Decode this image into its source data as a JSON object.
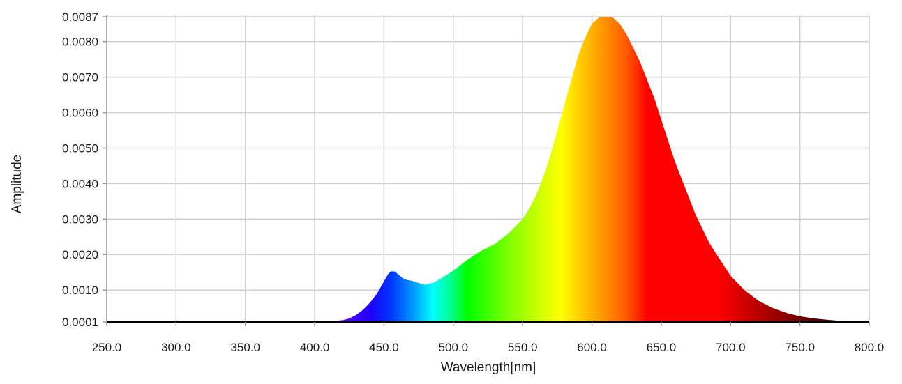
{
  "chart_data": {
    "type": "area",
    "title": "",
    "xlabel": "Wavelength[nm]",
    "ylabel": "Amplitude",
    "xlim": [
      250,
      800
    ],
    "ylim": [
      0.0001,
      0.0087
    ],
    "grid": true,
    "x_ticks": [
      250,
      300,
      350,
      400,
      450,
      500,
      550,
      600,
      650,
      700,
      750,
      800
    ],
    "x_tick_labels": [
      "250.0",
      "300.0",
      "350.0",
      "400.0",
      "450.0",
      "500.0",
      "550.0",
      "600.0",
      "650.0",
      "700.0",
      "750.0",
      "800.0"
    ],
    "y_ticks": [
      0.0001,
      0.001,
      0.002,
      0.003,
      0.004,
      0.005,
      0.006,
      0.007,
      0.008,
      0.0087
    ],
    "y_tick_labels": [
      "0.0001",
      "0.0010",
      "0.0020",
      "0.0030",
      "0.0040",
      "0.0050",
      "0.0060",
      "0.0070",
      "0.0080",
      "0.0087"
    ],
    "fill": "visible-spectrum color gradient by wavelength",
    "series": [
      {
        "x": [
          250,
          300,
          350,
          375,
          380,
          390,
          400,
          410,
          420,
          425,
          430,
          435,
          440,
          445,
          450,
          453,
          455,
          458,
          460,
          463,
          465,
          470,
          475,
          478,
          480,
          485,
          490,
          495,
          500,
          505,
          510,
          520,
          530,
          540,
          550,
          555,
          560,
          565,
          570,
          575,
          580,
          585,
          590,
          595,
          600,
          605,
          610,
          615,
          620,
          625,
          630,
          635,
          640,
          645,
          650,
          655,
          660,
          665,
          670,
          675,
          680,
          685,
          690,
          695,
          700,
          710,
          720,
          730,
          740,
          750,
          760,
          770,
          780,
          790,
          800
        ],
        "y": [
          0.0001,
          0.0001,
          0.0001,
          0.0001,
          0.00011,
          0.00011,
          0.00011,
          0.00012,
          0.00015,
          0.0002,
          0.0003,
          0.00045,
          0.00065,
          0.0009,
          0.00125,
          0.00145,
          0.00153,
          0.00152,
          0.00145,
          0.00135,
          0.0013,
          0.00126,
          0.0012,
          0.00116,
          0.00115,
          0.0012,
          0.0013,
          0.00142,
          0.00155,
          0.0017,
          0.00185,
          0.0021,
          0.0023,
          0.0026,
          0.003,
          0.0033,
          0.0037,
          0.0042,
          0.0048,
          0.0055,
          0.0062,
          0.0069,
          0.0076,
          0.0081,
          0.0085,
          0.00868,
          0.0087,
          0.00868,
          0.0085,
          0.0082,
          0.0078,
          0.0074,
          0.0069,
          0.0064,
          0.0058,
          0.0052,
          0.0046,
          0.0041,
          0.0036,
          0.0031,
          0.0027,
          0.0023,
          0.002,
          0.0017,
          0.0014,
          0.001,
          0.0007,
          0.0005,
          0.00036,
          0.00026,
          0.0002,
          0.00016,
          0.00013,
          0.00012,
          0.00011
        ]
      }
    ]
  }
}
